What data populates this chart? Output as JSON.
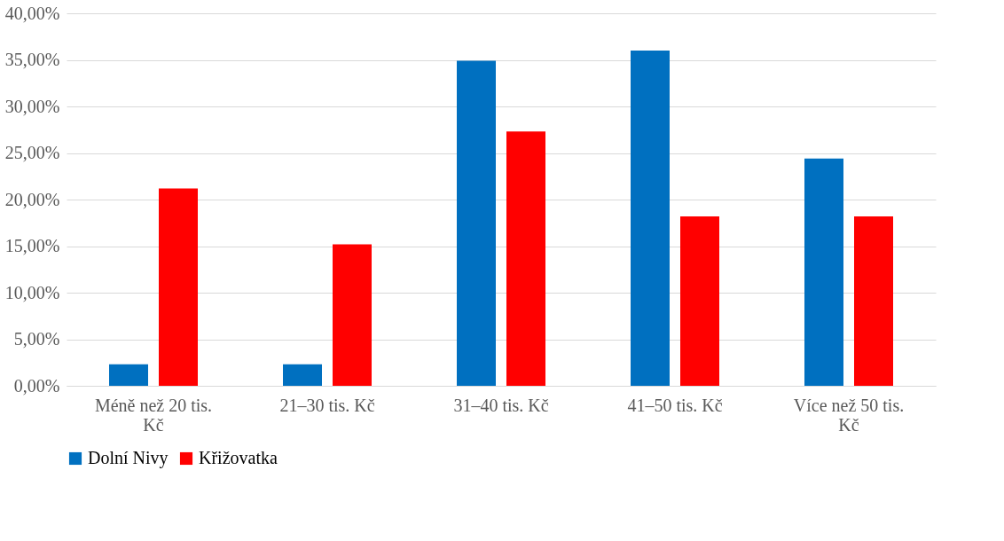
{
  "chart_data": {
    "type": "bar",
    "categories": [
      "Méně než 20 tis. Kč",
      "21–30 tis. Kč",
      "31–40 tis. Kč",
      "41–50 tis. Kč",
      "Více než 50 tis. Kč"
    ],
    "series": [
      {
        "name": "Dolní Nivy",
        "color": "#0070c0",
        "values": [
          2.3,
          2.3,
          34.9,
          36.0,
          24.4
        ]
      },
      {
        "name": "Křižovatka",
        "color": "#ff0000",
        "values": [
          21.2,
          15.2,
          27.3,
          18.2,
          18.2
        ]
      }
    ],
    "ylim": [
      0,
      40
    ],
    "yticks": [
      {
        "value": 0,
        "label": "0,00%"
      },
      {
        "value": 5,
        "label": "5,00%"
      },
      {
        "value": 10,
        "label": "10,00%"
      },
      {
        "value": 15,
        "label": "15,00%"
      },
      {
        "value": 20,
        "label": "20,00%"
      },
      {
        "value": 25,
        "label": "25,00%"
      },
      {
        "value": 30,
        "label": "30,00%"
      },
      {
        "value": 35,
        "label": "35,00%"
      },
      {
        "value": 40,
        "label": "40,00%"
      }
    ],
    "grid": "y",
    "legend": "bottom"
  }
}
